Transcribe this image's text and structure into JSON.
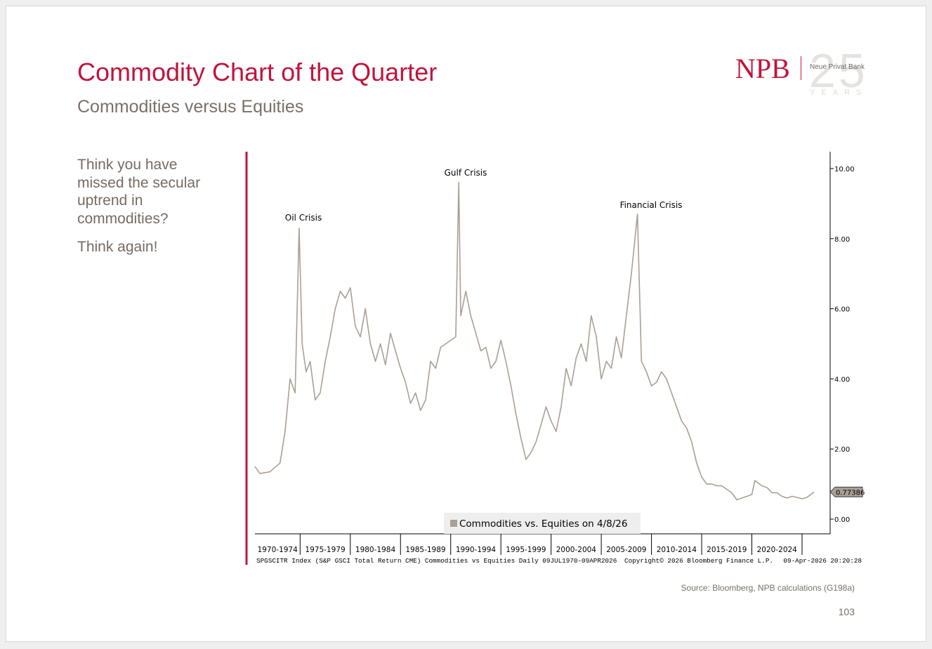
{
  "header": {
    "title": "Commodity Chart of the Quarter",
    "subtitle": "Commodities versus Equities"
  },
  "logo": {
    "brand": "NPB",
    "bank": "Neue Privat Bank",
    "anniversary": "25",
    "years": "YEARS"
  },
  "body": {
    "paragraphs": [
      "Think you have missed the secular uptrend in commodities?",
      "Think again!"
    ]
  },
  "chart_data": {
    "type": "line",
    "annotations": [
      "Oil Crisis",
      "Gulf Crisis",
      "Financial Crisis"
    ],
    "categories": [
      "1970-1974",
      "1975-1979",
      "1980-1984",
      "1985-1989",
      "1990-1994",
      "1995-1999",
      "2000-2004",
      "2005-2009",
      "2010-2014",
      "2015-2019",
      "2020-2024"
    ],
    "x": [
      1970.5,
      1971,
      1972,
      1973,
      1973.5,
      1974,
      1974.5,
      1974.9,
      1975.2,
      1975.6,
      1976,
      1976.5,
      1977,
      1977.5,
      1978,
      1978.5,
      1979,
      1979.5,
      1980,
      1980.5,
      1981,
      1981.5,
      1982,
      1982.5,
      1983,
      1983.5,
      1984,
      1984.5,
      1985,
      1985.5,
      1986,
      1986.5,
      1987,
      1987.5,
      1988,
      1988.5,
      1989,
      1989.5,
      1990.5,
      1990.8,
      1991,
      1991.5,
      1992,
      1992.5,
      1993,
      1993.5,
      1994,
      1994.5,
      1995,
      1995.5,
      1996,
      1996.5,
      1997,
      1997.5,
      1998,
      1998.5,
      1999,
      1999.5,
      2000,
      2000.5,
      2001,
      2001.5,
      2002,
      2002.5,
      2003,
      2003.5,
      2004,
      2004.5,
      2005,
      2005.5,
      2006,
      2006.5,
      2007,
      2007.5,
      2008,
      2008.6,
      2009,
      2009.5,
      2010,
      2010.5,
      2011,
      2011.5,
      2012,
      2012.5,
      2013,
      2013.5,
      2014,
      2014.5,
      2015,
      2015.5,
      2016,
      2016.5,
      2017,
      2017.5,
      2018,
      2018.5,
      2019,
      2019.5,
      2020,
      2020.3,
      2021,
      2021.5,
      2022,
      2022.5,
      2023,
      2023.5,
      2024,
      2024.5,
      2025,
      2025.5,
      2026.2
    ],
    "series": [
      {
        "name": "Commodities vs. Equities on 4/8/26",
        "color": "#ab9f94",
        "values": [
          1.5,
          1.3,
          1.35,
          1.6,
          2.5,
          4.0,
          3.6,
          8.3,
          5.0,
          4.2,
          4.5,
          3.4,
          3.6,
          4.5,
          5.2,
          6.0,
          6.5,
          6.3,
          6.6,
          5.5,
          5.2,
          6.0,
          5.0,
          4.5,
          5.0,
          4.4,
          5.3,
          4.8,
          4.3,
          3.9,
          3.3,
          3.6,
          3.1,
          3.4,
          4.5,
          4.3,
          4.9,
          5.0,
          5.2,
          9.6,
          5.8,
          6.5,
          5.8,
          5.3,
          4.8,
          4.9,
          4.3,
          4.5,
          5.1,
          4.5,
          3.8,
          3.0,
          2.3,
          1.7,
          1.9,
          2.2,
          2.7,
          3.2,
          2.8,
          2.5,
          3.2,
          4.3,
          3.8,
          4.6,
          5.0,
          4.5,
          5.8,
          5.2,
          4.0,
          4.5,
          4.3,
          5.2,
          4.6,
          5.8,
          7.0,
          8.7,
          4.5,
          4.2,
          3.8,
          3.9,
          4.2,
          4.0,
          3.6,
          3.2,
          2.8,
          2.6,
          2.2,
          1.6,
          1.2,
          1.0,
          1.0,
          0.95,
          0.95,
          0.85,
          0.75,
          0.55,
          0.6,
          0.65,
          0.7,
          1.1,
          0.95,
          0.9,
          0.75,
          0.75,
          0.65,
          0.6,
          0.65,
          0.62,
          0.58,
          0.62,
          0.77386
        ]
      }
    ],
    "xlim": [
      1970.5,
      2027.8
    ],
    "xticks": [
      1975,
      1980,
      1985,
      1990,
      1995,
      2000,
      2005,
      2010,
      2015,
      2020,
      2025
    ],
    "ylim": [
      -0.42,
      10.48
    ],
    "yticks": [
      {
        "value": 0,
        "label": "0.00"
      },
      {
        "value": 2,
        "label": "2.00"
      },
      {
        "value": 4,
        "label": "4.00"
      },
      {
        "value": 6,
        "label": "6.00"
      },
      {
        "value": 8,
        "label": "8.00"
      },
      {
        "value": 10,
        "label": "10.00"
      }
    ],
    "footer": [
      "SPGSCITR Index (S&P GSCI Total Return CME) Commodities vs Equities Daily 09JUL1970-09APR2026",
      "Copyright© 2026 Bloomberg Finance L.P.",
      "09-Apr-2026 20:20:28"
    ]
  },
  "source": "Source: Bloomberg, NPB calculations (G198a)",
  "page_number": "103"
}
